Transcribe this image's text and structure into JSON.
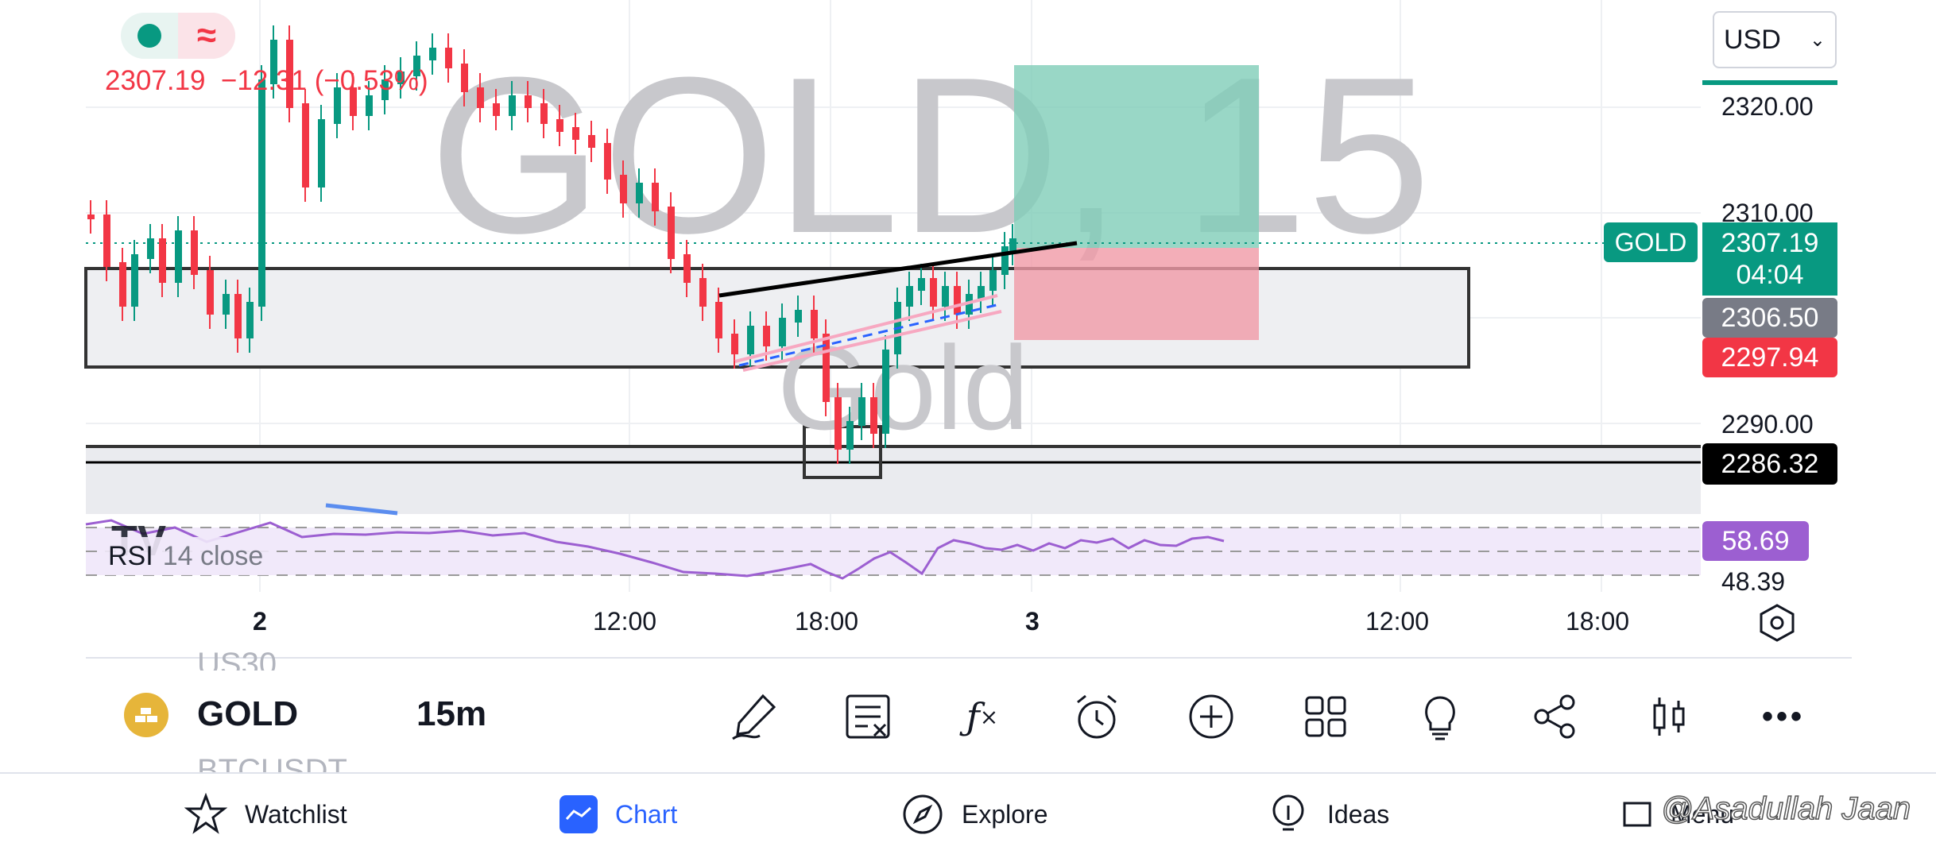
{
  "symbol": {
    "watermark": "GOLD, 15",
    "subtitle_watermark": "Gold",
    "price_change": "2307.19  −12.31 (−0.53%)",
    "currency": "USD"
  },
  "price_axis": {
    "labels": [
      "2320.00",
      "2310.00",
      "2290.00",
      "48.39"
    ],
    "current_price": "2307.19",
    "countdown": "04:04",
    "tag_symbol": "GOLD",
    "tag_gray": "2306.50",
    "tag_red": "2297.94",
    "tag_black": "2286.32",
    "rsi_value": "58.69"
  },
  "time_axis": {
    "labels": [
      "2",
      "12:00",
      "18:00",
      "3",
      "12:00",
      "18:00"
    ]
  },
  "rsi": {
    "label": "RSI",
    "params": "14 close"
  },
  "bottom_bar": {
    "symbol_above": "US30",
    "symbol": "GOLD",
    "symbol_below": "BTCUSDT",
    "interval": "15m",
    "tools": [
      "pen-icon",
      "study-template-icon",
      "fx-icon",
      "alarm-icon",
      "plus-icon",
      "grid-icon",
      "lightbulb-icon",
      "share-icon",
      "candles-icon",
      "more-icon"
    ]
  },
  "nav": {
    "items": [
      {
        "label": "Watchlist",
        "icon": "star-icon"
      },
      {
        "label": "Chart",
        "icon": "chart-icon"
      },
      {
        "label": "Explore",
        "icon": "compass-icon"
      },
      {
        "label": "Ideas",
        "icon": "bulb-icon"
      },
      {
        "label": "Menu",
        "icon": "menu-icon"
      }
    ],
    "active": "Chart"
  },
  "watermark_credit": "@Asadullah Jaan",
  "colors": {
    "up": "#089981",
    "down": "#f23645",
    "rsi": "#9c5fd1",
    "accent": "#2962ff"
  }
}
